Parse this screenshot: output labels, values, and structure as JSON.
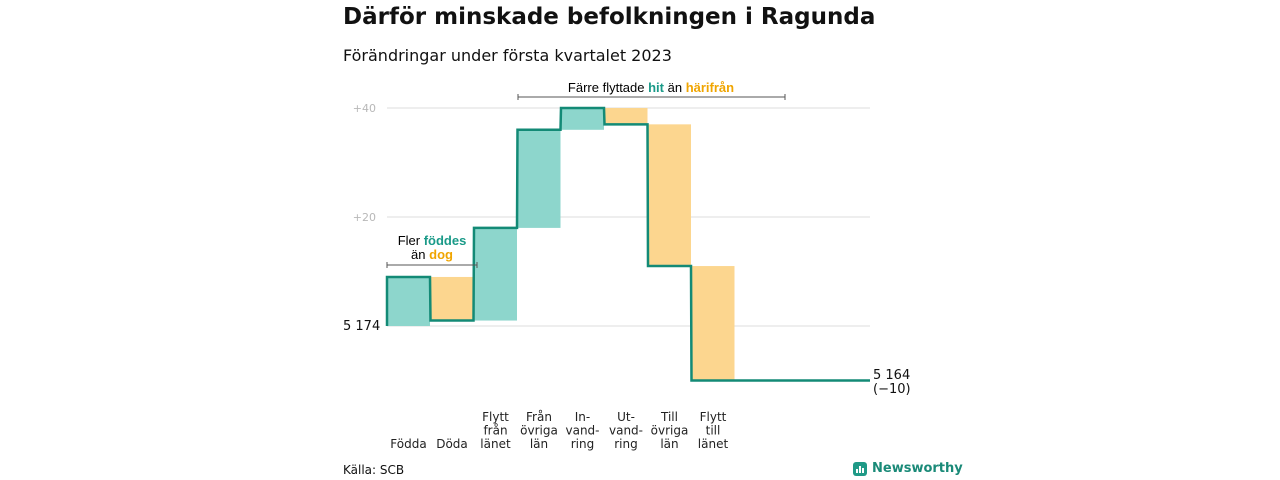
{
  "header": {
    "title": "Därför minskade befolkningen i Ragunda",
    "subtitle": "Förändringar under första kvartalet 2023"
  },
  "footer": {
    "source": "Källa: SCB",
    "brand": "Newsworthy"
  },
  "annotations": {
    "births": {
      "line1_a": "Fler ",
      "line1_b": "föddes",
      "line2_a": "än ",
      "line2_b": "dog"
    },
    "migration": {
      "a": "Färre flyttade ",
      "b": "hit",
      "c": " än ",
      "d": "härifrån"
    }
  },
  "colors": {
    "increase": "#8dd6cc",
    "decrease": "#fcd68f",
    "line": "#138a76",
    "grid": "#dddddd",
    "accent_green": "#1a9a88",
    "accent_orange": "#f0a500"
  },
  "chart_data": {
    "type": "waterfall",
    "start": {
      "value": 5174,
      "label": "5 174"
    },
    "end": {
      "value": 5164,
      "label": "5 164",
      "change_label": "(−10)"
    },
    "yticks": [
      {
        "value": 20,
        "label": "+20"
      },
      {
        "value": 40,
        "label": "+40"
      }
    ],
    "ylim": [
      -10,
      40
    ],
    "steps": [
      {
        "label": [
          "Födda"
        ],
        "change": 9
      },
      {
        "label": [
          "Döda"
        ],
        "change": -8
      },
      {
        "label": [
          "Flytt",
          "från",
          "länet"
        ],
        "change": 17
      },
      {
        "label": [
          "Från",
          "övriga",
          "län"
        ],
        "change": 18
      },
      {
        "label": [
          "In-",
          "vand-",
          "ring"
        ],
        "change": 4
      },
      {
        "label": [
          "Ut-",
          "vand-",
          "ring"
        ],
        "change": -3
      },
      {
        "label": [
          "Till",
          "övriga",
          "län"
        ],
        "change": -26
      },
      {
        "label": [
          "Flytt",
          "till",
          "länet"
        ],
        "change": -21
      }
    ]
  }
}
